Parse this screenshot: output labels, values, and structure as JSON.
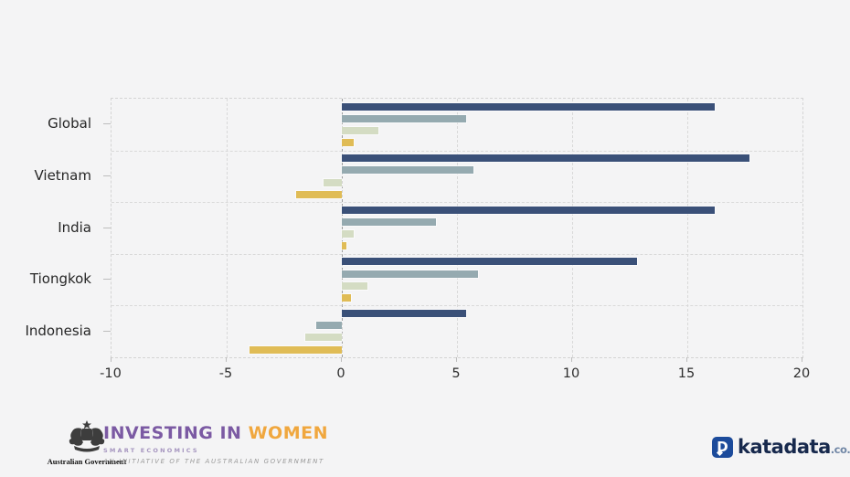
{
  "chart_data": {
    "type": "bar",
    "orientation": "horizontal",
    "title": "",
    "legend": "none",
    "grid": "dashed",
    "xlim": [
      -10,
      20
    ],
    "x_ticks": [
      "-10",
      "-5",
      "0",
      "5",
      "10",
      "15",
      "20"
    ],
    "categories": [
      "Global",
      "Vietnam",
      "India",
      "Tiongkok",
      "Indonesia"
    ],
    "series": [
      {
        "name": "navy",
        "color": "#3a5078",
        "values": [
          16.2,
          17.7,
          16.2,
          12.8,
          5.4
        ]
      },
      {
        "name": "steel-blue",
        "color": "#95aab0",
        "values": [
          5.4,
          5.7,
          4.1,
          5.9,
          -1.1
        ]
      },
      {
        "name": "light-green",
        "color": "#d4dcc3",
        "values": [
          1.6,
          -0.8,
          0.5,
          1.1,
          -1.6
        ]
      },
      {
        "name": "yellow",
        "color": "#e0bc56",
        "values": [
          0.5,
          -2.0,
          0.2,
          0.4,
          -4.0
        ]
      }
    ]
  },
  "footer": {
    "gov_label": "Australian Government",
    "iw_title_part1": "INVESTING IN ",
    "iw_title_part2": "WOMEN",
    "iw_subtitle": "SMART ECONOMICS",
    "iw_tagline": "AN INITIATIVE OF THE AUSTRALIAN GOVERNMENT",
    "katadata_name": "katadata",
    "katadata_suffix": ".co.id",
    "katadata_icon_letter": "D"
  },
  "colors": {
    "background": "#f4f4f5",
    "gridline": "#d9d9d9",
    "zero_line": "#9e9e9e",
    "tick_text": "#2e2e2e",
    "category_text": "#262626",
    "iw_purple": "#7b5aa3",
    "iw_orange": "#f0a73e",
    "katadata_blue": "#1c4b9b",
    "katadata_text": "#17294d"
  }
}
